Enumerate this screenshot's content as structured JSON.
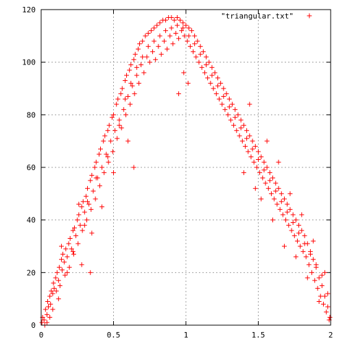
{
  "chart_data": {
    "type": "scatter",
    "title": "",
    "xlabel": "",
    "ylabel": "",
    "xlim": [
      0,
      2
    ],
    "ylim": [
      0,
      120
    ],
    "x_ticks": [
      "0",
      "0.5",
      "1",
      "1.5",
      "2"
    ],
    "x_tick_values": [
      0,
      0.5,
      1,
      1.5,
      2
    ],
    "y_ticks": [
      "0",
      "20",
      "40",
      "60",
      "80",
      "100",
      "120"
    ],
    "y_tick_values": [
      0,
      20,
      40,
      60,
      80,
      100,
      120
    ],
    "grid": true,
    "legend_position": "top-right",
    "marker": "plus",
    "color": "#ff0000",
    "series": [
      {
        "name": "\"triangular.txt\"",
        "distribution": "triangular on [0, 2], peak at x = 1",
        "points": [
          [
            0.005,
            1
          ],
          [
            0.01,
            3
          ],
          [
            0.02,
            2
          ],
          [
            0.03,
            6
          ],
          [
            0.04,
            4
          ],
          [
            0.045,
            9
          ],
          [
            0.05,
            7
          ],
          [
            0.06,
            11
          ],
          [
            0.065,
            8
          ],
          [
            0.07,
            13
          ],
          [
            0.08,
            12
          ],
          [
            0.085,
            16
          ],
          [
            0.09,
            14
          ],
          [
            0.1,
            18
          ],
          [
            0.105,
            13
          ],
          [
            0.11,
            20
          ],
          [
            0.12,
            17
          ],
          [
            0.125,
            22
          ],
          [
            0.13,
            15
          ],
          [
            0.14,
            25
          ],
          [
            0.145,
            21
          ],
          [
            0.15,
            27
          ],
          [
            0.16,
            24
          ],
          [
            0.165,
            19
          ],
          [
            0.17,
            29
          ],
          [
            0.18,
            26
          ],
          [
            0.19,
            31
          ],
          [
            0.195,
            22
          ],
          [
            0.2,
            33
          ],
          [
            0.21,
            29
          ],
          [
            0.22,
            36
          ],
          [
            0.225,
            27
          ],
          [
            0.23,
            37
          ],
          [
            0.24,
            34
          ],
          [
            0.25,
            40
          ],
          [
            0.255,
            31
          ],
          [
            0.26,
            42
          ],
          [
            0.27,
            38
          ],
          [
            0.28,
            45
          ],
          [
            0.285,
            36
          ],
          [
            0.29,
            47
          ],
          [
            0.3,
            43
          ],
          [
            0.31,
            49
          ],
          [
            0.315,
            40
          ],
          [
            0.32,
            52
          ],
          [
            0.33,
            46
          ],
          [
            0.34,
            55
          ],
          [
            0.345,
            44
          ],
          [
            0.35,
            57
          ],
          [
            0.36,
            51
          ],
          [
            0.37,
            60
          ],
          [
            0.375,
            48
          ],
          [
            0.38,
            62
          ],
          [
            0.39,
            56
          ],
          [
            0.4,
            65
          ],
          [
            0.405,
            53
          ],
          [
            0.41,
            67
          ],
          [
            0.42,
            60
          ],
          [
            0.43,
            70
          ],
          [
            0.435,
            58
          ],
          [
            0.44,
            72
          ],
          [
            0.45,
            65
          ],
          [
            0.46,
            74
          ],
          [
            0.465,
            62
          ],
          [
            0.47,
            76
          ],
          [
            0.48,
            70
          ],
          [
            0.49,
            79
          ],
          [
            0.495,
            66
          ],
          [
            0.5,
            80
          ],
          [
            0.51,
            74
          ],
          [
            0.52,
            84
          ],
          [
            0.525,
            71
          ],
          [
            0.53,
            86
          ],
          [
            0.54,
            78
          ],
          [
            0.55,
            88
          ],
          [
            0.555,
            75
          ],
          [
            0.56,
            90
          ],
          [
            0.57,
            82
          ],
          [
            0.58,
            93
          ],
          [
            0.585,
            80
          ],
          [
            0.59,
            95
          ],
          [
            0.6,
            87
          ],
          [
            0.61,
            97
          ],
          [
            0.615,
            84
          ],
          [
            0.62,
            99
          ],
          [
            0.63,
            91
          ],
          [
            0.64,
            101
          ],
          [
            0.645,
            88
          ],
          [
            0.65,
            103
          ],
          [
            0.66,
            95
          ],
          [
            0.67,
            105
          ],
          [
            0.675,
            92
          ],
          [
            0.68,
            107
          ],
          [
            0.69,
            99
          ],
          [
            0.7,
            108
          ],
          [
            0.71,
            96
          ],
          [
            0.72,
            110
          ],
          [
            0.73,
            102
          ],
          [
            0.74,
            111
          ],
          [
            0.75,
            100
          ],
          [
            0.76,
            112
          ],
          [
            0.77,
            104
          ],
          [
            0.78,
            113
          ],
          [
            0.79,
            101
          ],
          [
            0.8,
            114
          ],
          [
            0.81,
            106
          ],
          [
            0.82,
            115
          ],
          [
            0.83,
            103
          ],
          [
            0.84,
            116
          ],
          [
            0.85,
            108
          ],
          [
            0.86,
            116
          ],
          [
            0.87,
            105
          ],
          [
            0.88,
            117
          ],
          [
            0.89,
            110
          ],
          [
            0.9,
            117
          ],
          [
            0.91,
            107
          ],
          [
            0.92,
            116
          ],
          [
            0.93,
            111
          ],
          [
            0.94,
            117
          ],
          [
            0.95,
            109
          ],
          [
            0.96,
            116
          ],
          [
            0.97,
            112
          ],
          [
            0.98,
            115
          ],
          [
            0.99,
            110
          ],
          [
            1.0,
            114
          ],
          [
            1.01,
            108
          ],
          [
            1.02,
            113
          ],
          [
            1.03,
            106
          ],
          [
            1.04,
            112
          ],
          [
            1.05,
            104
          ],
          [
            1.06,
            110
          ],
          [
            1.07,
            102
          ],
          [
            1.08,
            108
          ],
          [
            1.09,
            100
          ],
          [
            1.1,
            106
          ],
          [
            1.11,
            98
          ],
          [
            1.12,
            104
          ],
          [
            1.13,
            96
          ],
          [
            1.14,
            102
          ],
          [
            1.15,
            94
          ],
          [
            1.16,
            100
          ],
          [
            1.17,
            92
          ],
          [
            1.18,
            98
          ],
          [
            1.19,
            90
          ],
          [
            1.2,
            96
          ],
          [
            1.21,
            88
          ],
          [
            1.22,
            94
          ],
          [
            1.23,
            86
          ],
          [
            1.24,
            92
          ],
          [
            1.25,
            84
          ],
          [
            1.26,
            90
          ],
          [
            1.27,
            82
          ],
          [
            1.28,
            88
          ],
          [
            1.29,
            80
          ],
          [
            1.3,
            86
          ],
          [
            1.31,
            78
          ],
          [
            1.32,
            84
          ],
          [
            1.33,
            76
          ],
          [
            1.34,
            82
          ],
          [
            1.35,
            74
          ],
          [
            1.36,
            80
          ],
          [
            1.37,
            72
          ],
          [
            1.38,
            78
          ],
          [
            1.39,
            70
          ],
          [
            1.4,
            76
          ],
          [
            1.41,
            68
          ],
          [
            1.42,
            74
          ],
          [
            1.43,
            66
          ],
          [
            1.44,
            72
          ],
          [
            1.45,
            64
          ],
          [
            1.46,
            70
          ],
          [
            1.47,
            62
          ],
          [
            1.48,
            68
          ],
          [
            1.49,
            60
          ],
          [
            1.5,
            66
          ],
          [
            1.51,
            58
          ],
          [
            1.52,
            64
          ],
          [
            1.53,
            56
          ],
          [
            1.54,
            62
          ],
          [
            1.55,
            54
          ],
          [
            1.56,
            60
          ],
          [
            1.57,
            52
          ],
          [
            1.58,
            58
          ],
          [
            1.59,
            50
          ],
          [
            1.6,
            56
          ],
          [
            1.61,
            48
          ],
          [
            1.62,
            54
          ],
          [
            1.63,
            46
          ],
          [
            1.64,
            52
          ],
          [
            1.65,
            44
          ],
          [
            1.66,
            50
          ],
          [
            1.67,
            42
          ],
          [
            1.68,
            48
          ],
          [
            1.69,
            40
          ],
          [
            1.7,
            46
          ],
          [
            1.71,
            38
          ],
          [
            1.72,
            44
          ],
          [
            1.73,
            36
          ],
          [
            1.74,
            42
          ],
          [
            1.75,
            34
          ],
          [
            1.76,
            40
          ],
          [
            1.77,
            32
          ],
          [
            1.78,
            38
          ],
          [
            1.79,
            30
          ],
          [
            1.8,
            36
          ],
          [
            1.81,
            28
          ],
          [
            1.82,
            34
          ],
          [
            1.83,
            26
          ],
          [
            1.84,
            31
          ],
          [
            1.85,
            23
          ],
          [
            1.86,
            28
          ],
          [
            1.87,
            20
          ],
          [
            1.88,
            25
          ],
          [
            1.89,
            17
          ],
          [
            1.9,
            22
          ],
          [
            1.91,
            14
          ],
          [
            1.92,
            18
          ],
          [
            1.93,
            11
          ],
          [
            1.94,
            15
          ],
          [
            1.95,
            8
          ],
          [
            1.96,
            11
          ],
          [
            1.97,
            5
          ],
          [
            1.98,
            7
          ],
          [
            1.99,
            2
          ],
          [
            1.995,
            3
          ],
          [
            0.58,
            86
          ],
          [
            0.62,
            92
          ],
          [
            0.66,
            98
          ],
          [
            0.7,
            102
          ],
          [
            0.74,
            106
          ],
          [
            0.78,
            108
          ],
          [
            0.82,
            110
          ],
          [
            0.86,
            112
          ],
          [
            0.9,
            113
          ],
          [
            0.94,
            114
          ],
          [
            0.98,
            113
          ],
          [
            1.02,
            110
          ],
          [
            1.06,
            107
          ],
          [
            1.1,
            103
          ],
          [
            1.14,
            99
          ],
          [
            1.18,
            95
          ],
          [
            1.22,
            91
          ],
          [
            1.26,
            87
          ],
          [
            1.3,
            83
          ],
          [
            1.34,
            79
          ],
          [
            1.38,
            75
          ],
          [
            1.42,
            71
          ],
          [
            1.46,
            67
          ],
          [
            1.5,
            63
          ],
          [
            1.54,
            59
          ],
          [
            1.58,
            55
          ],
          [
            1.62,
            51
          ],
          [
            1.66,
            47
          ],
          [
            1.7,
            43
          ],
          [
            1.74,
            39
          ],
          [
            1.78,
            35
          ],
          [
            1.82,
            31
          ],
          [
            1.86,
            27
          ],
          [
            1.9,
            23
          ],
          [
            1.94,
            19
          ],
          [
            0.32,
            47
          ],
          [
            0.35,
            35
          ],
          [
            0.38,
            56
          ],
          [
            0.42,
            45
          ],
          [
            0.46,
            64
          ],
          [
            0.5,
            58
          ],
          [
            0.54,
            76
          ],
          [
            0.22,
            28
          ],
          [
            0.26,
            46
          ],
          [
            0.28,
            23
          ],
          [
            0.18,
            20
          ],
          [
            0.14,
            30
          ],
          [
            0.12,
            10
          ],
          [
            0.3,
            38
          ],
          [
            0.34,
            20
          ],
          [
            0.6,
            70
          ],
          [
            0.64,
            60
          ],
          [
            1.4,
            58
          ],
          [
            1.44,
            84
          ],
          [
            1.48,
            52
          ],
          [
            1.52,
            48
          ],
          [
            1.56,
            70
          ],
          [
            1.6,
            40
          ],
          [
            1.64,
            62
          ],
          [
            1.68,
            30
          ],
          [
            1.72,
            50
          ],
          [
            1.76,
            26
          ],
          [
            1.8,
            42
          ],
          [
            1.84,
            18
          ],
          [
            1.88,
            32
          ],
          [
            1.92,
            9
          ],
          [
            1.96,
            20
          ],
          [
            1.98,
            12
          ],
          [
            0.08,
            6
          ],
          [
            0.06,
            3
          ],
          [
            0.04,
            1
          ],
          [
            0.025,
            0
          ],
          [
            0.985,
            96
          ],
          [
            1.015,
            92
          ],
          [
            0.95,
            88
          ]
        ]
      }
    ]
  }
}
